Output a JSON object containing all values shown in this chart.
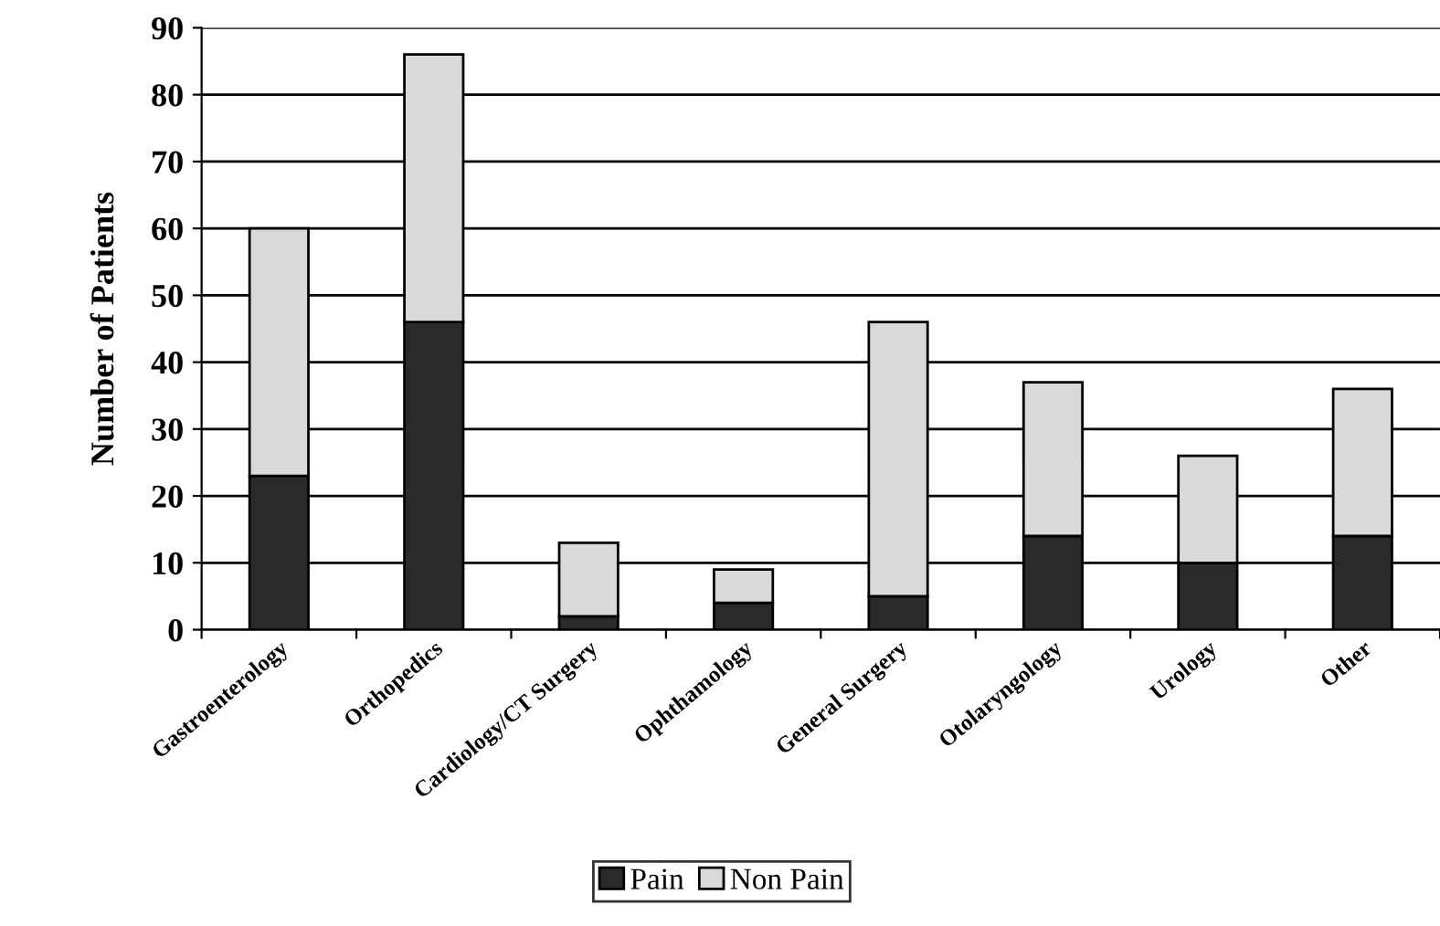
{
  "chart_data": {
    "type": "bar",
    "stacked": true,
    "ylabel": "Number of Patients",
    "categories": [
      "Gastroenterology",
      "Orthopedics",
      "Cardiology/CT Surgery",
      "Ophthamology",
      "General Surgery",
      "Otolaryngology",
      "Urology",
      "Other"
    ],
    "series": [
      {
        "name": "Pain",
        "color": "#2a2a2a",
        "values": [
          23,
          46,
          2,
          4,
          5,
          14,
          10,
          14
        ]
      },
      {
        "name": "Non Pain",
        "color": "#d9d9d9",
        "values": [
          37,
          40,
          11,
          5,
          41,
          23,
          16,
          22
        ]
      }
    ],
    "ylim": [
      0,
      90
    ],
    "yticks": [
      0,
      10,
      20,
      30,
      40,
      50,
      60,
      70,
      80,
      90
    ],
    "grid": "y",
    "legend": "bottom"
  }
}
